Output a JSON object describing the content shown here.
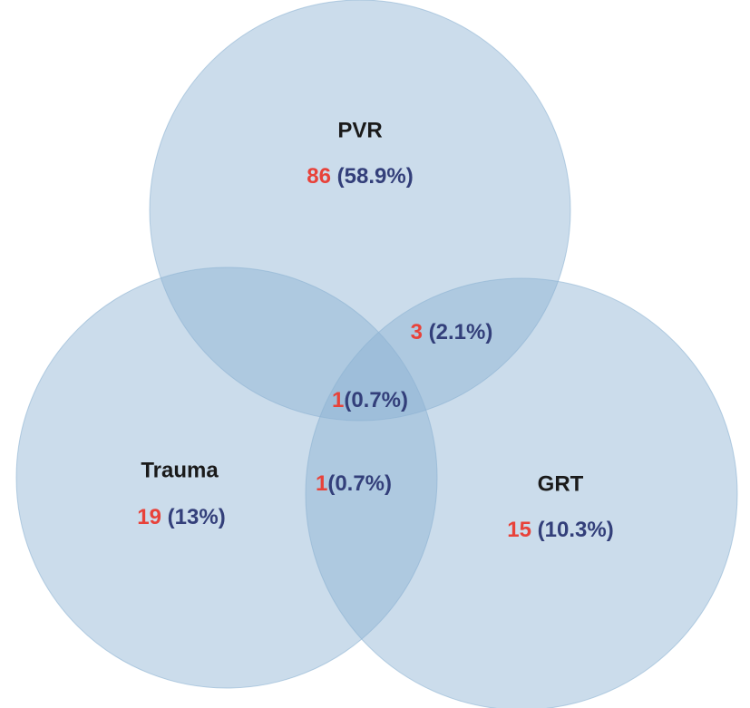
{
  "sets": [
    {
      "label": "PVR",
      "count": 86,
      "percent": "(58.9%)"
    },
    {
      "label": "Trauma",
      "count": 19,
      "percent": "(13%)"
    },
    {
      "label": "GRT",
      "count": 15,
      "percent": "(10.3%)"
    }
  ],
  "intersections": [
    {
      "count": 3,
      "percent": "(2.1%)"
    },
    {
      "count": 1,
      "percent": "(0.7%)"
    },
    {
      "count": 1,
      "percent": "(0.7%)"
    }
  ]
}
